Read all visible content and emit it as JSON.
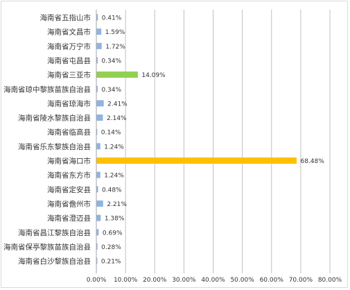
{
  "chart_data": {
    "type": "bar",
    "orientation": "horizontal",
    "categories": [
      "海南省五指山市",
      "海南省文昌市",
      "海南省万宁市",
      "海南省屯昌县",
      "海南省三亚市",
      "海南省琼中黎族苗族自治县",
      "海南省琼海市",
      "海南省陵水黎族自治县",
      "海南省临高县",
      "海南省乐东黎族自治县",
      "海南省海口市",
      "海南省东方市",
      "海南省定安县",
      "海南省儋州市",
      "海南省澄迈县",
      "海南省昌江黎族自治县",
      "海南省保亭黎族苗族自治县",
      "海南省白沙黎族自治县"
    ],
    "values": [
      0.41,
      1.59,
      1.72,
      0.34,
      14.09,
      0.34,
      2.41,
      2.14,
      0.14,
      1.24,
      68.48,
      1.24,
      0.48,
      2.21,
      1.38,
      0.69,
      0.28,
      0.21
    ],
    "value_labels": [
      "0.41%",
      "1.59%",
      "1.72%",
      "0.34%",
      "14.09%",
      "0.34%",
      "2.41%",
      "2.14%",
      "0.14%",
      "1.24%",
      "68.48%",
      "1.24%",
      "0.48%",
      "2.21%",
      "1.38%",
      "0.69%",
      "0.28%",
      "0.21%"
    ],
    "xlim": [
      0,
      80
    ],
    "x_ticks": [
      "0.00%",
      "10.00%",
      "20.00%",
      "30.00%",
      "40.00%",
      "50.00%",
      "60.00%",
      "70.00%",
      "80.00%"
    ],
    "grid": "vertical",
    "colors": {
      "default": "#8eb4e3",
      "highlight_max": "#ffc000",
      "highlight_second": "#92d050",
      "grid": "#c0c0c0",
      "axis": "#a6a6a6"
    },
    "title": "",
    "xlabel": "",
    "ylabel": ""
  }
}
